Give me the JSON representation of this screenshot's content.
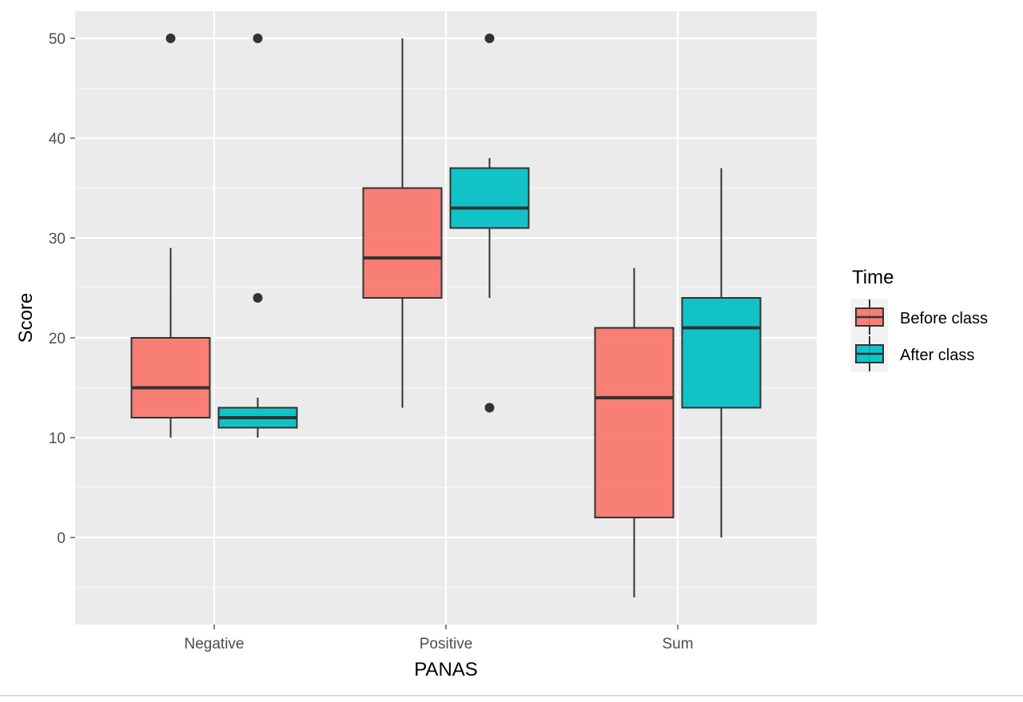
{
  "chart_data": {
    "type": "boxplot",
    "xlabel": "PANAS",
    "ylabel": "Score",
    "categories": [
      "Negative",
      "Positive",
      "Sum"
    ],
    "yticks": [
      0,
      10,
      20,
      30,
      40,
      50
    ],
    "ylim": [
      -9,
      53
    ],
    "grid": true,
    "legend": {
      "title": "Time",
      "position": "right",
      "entries": [
        "Before class",
        "After class"
      ]
    },
    "series": [
      {
        "name": "Before class",
        "color": "#F8766D",
        "boxes": [
          {
            "category": "Negative",
            "whisker_low": 10,
            "q1": 12,
            "median": 15,
            "q3": 20,
            "whisker_high": 29,
            "outliers": [
              50
            ]
          },
          {
            "category": "Positive",
            "whisker_low": 13,
            "q1": 24,
            "median": 28,
            "q3": 35,
            "whisker_high": 50,
            "outliers": []
          },
          {
            "category": "Sum",
            "whisker_low": -6,
            "q1": 2,
            "median": 14,
            "q3": 21,
            "whisker_high": 27,
            "outliers": []
          }
        ]
      },
      {
        "name": "After class",
        "color": "#00BFC4",
        "boxes": [
          {
            "category": "Negative",
            "whisker_low": 10,
            "q1": 11,
            "median": 12,
            "q3": 13,
            "whisker_high": 14,
            "outliers": [
              24,
              50
            ]
          },
          {
            "category": "Positive",
            "whisker_low": 24,
            "q1": 31,
            "median": 33,
            "q3": 37,
            "whisker_high": 38,
            "outliers": [
              13,
              50
            ]
          },
          {
            "category": "Sum",
            "whisker_low": 0,
            "q1": 13,
            "median": 21,
            "q3": 24,
            "whisker_high": 37,
            "outliers": []
          }
        ]
      }
    ]
  }
}
